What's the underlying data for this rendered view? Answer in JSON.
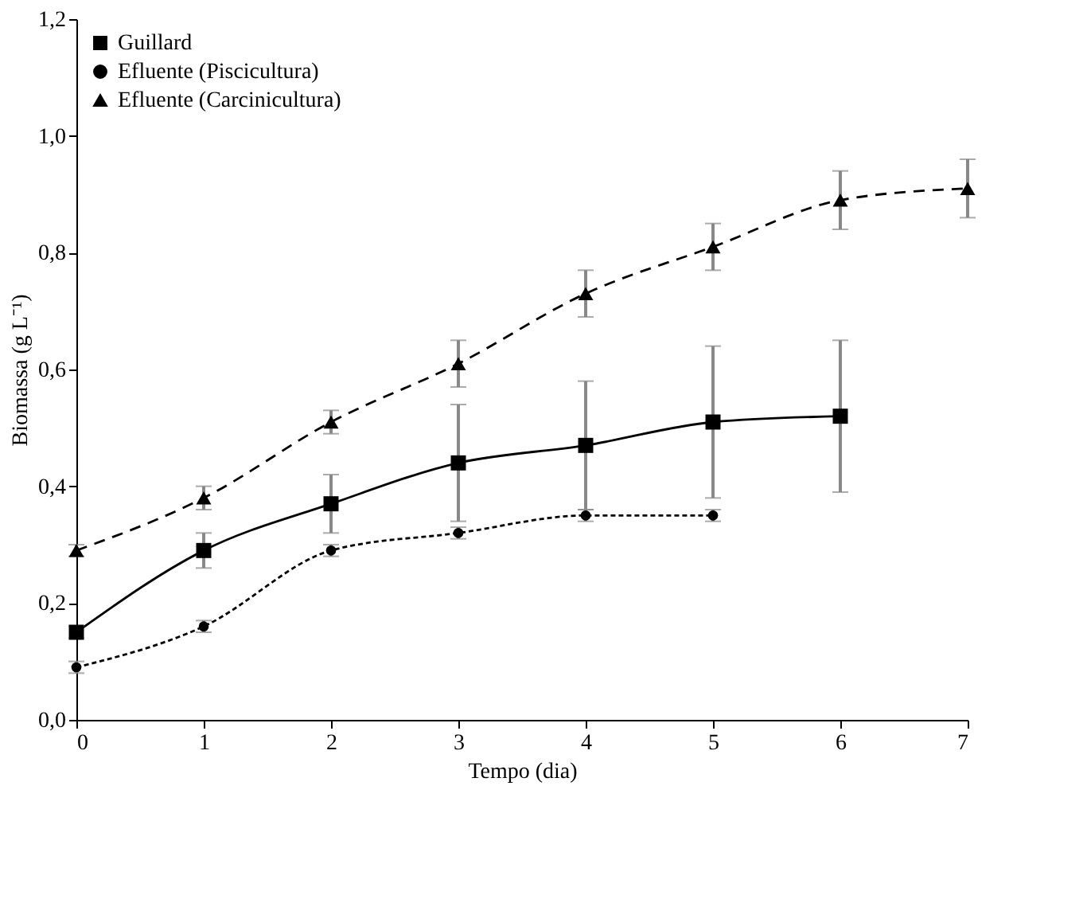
{
  "chart_data": {
    "type": "line",
    "xlabel": "Tempo (dia)",
    "ylabel": "Biomassa (g L⁻¹)",
    "xlim": [
      0,
      7
    ],
    "xticks": [
      0,
      1,
      2,
      3,
      4,
      5,
      6,
      7
    ],
    "ylim": [
      0,
      1.2
    ],
    "yticks": [
      {
        "value": 0,
        "label": "0,0"
      },
      {
        "value": 0.2,
        "label": "0,2"
      },
      {
        "value": 0.4,
        "label": "0,4"
      },
      {
        "value": 0.6,
        "label": "0,6"
      },
      {
        "value": 0.8,
        "label": "0,8"
      },
      {
        "value": 1.0,
        "label": "1,0"
      },
      {
        "value": 1.2,
        "label": "1,2"
      }
    ],
    "grid": false,
    "legend": "top left",
    "series": [
      {
        "name": "Guillard",
        "color": "#000000",
        "marker": "square",
        "line_style": "solid",
        "x": [
          0,
          1,
          2,
          3,
          4,
          5,
          6
        ],
        "values": [
          0.15,
          0.29,
          0.37,
          0.44,
          0.47,
          0.51,
          0.52
        ],
        "errors": [
          0.01,
          0.03,
          0.05,
          0.1,
          0.11,
          0.13,
          0.13
        ]
      },
      {
        "name": "Efluente (Piscicultura)",
        "color": "#000000",
        "marker": "circle",
        "line_style": "dotted",
        "x": [
          0,
          1,
          2,
          3,
          4,
          5
        ],
        "values": [
          0.09,
          0.16,
          0.29,
          0.32,
          0.35,
          0.35
        ],
        "errors": [
          0.01,
          0.01,
          0.01,
          0.01,
          0.01,
          0.01
        ]
      },
      {
        "name": "Efluente (Carcinicultura)",
        "color": "#000000",
        "marker": "triangle",
        "line_style": "dashed",
        "x": [
          0,
          1,
          2,
          3,
          4,
          5,
          6,
          7
        ],
        "values": [
          0.29,
          0.38,
          0.51,
          0.61,
          0.73,
          0.81,
          0.89,
          0.91
        ],
        "errors": [
          0.01,
          0.02,
          0.02,
          0.04,
          0.04,
          0.04,
          0.05,
          0.05
        ]
      }
    ]
  }
}
